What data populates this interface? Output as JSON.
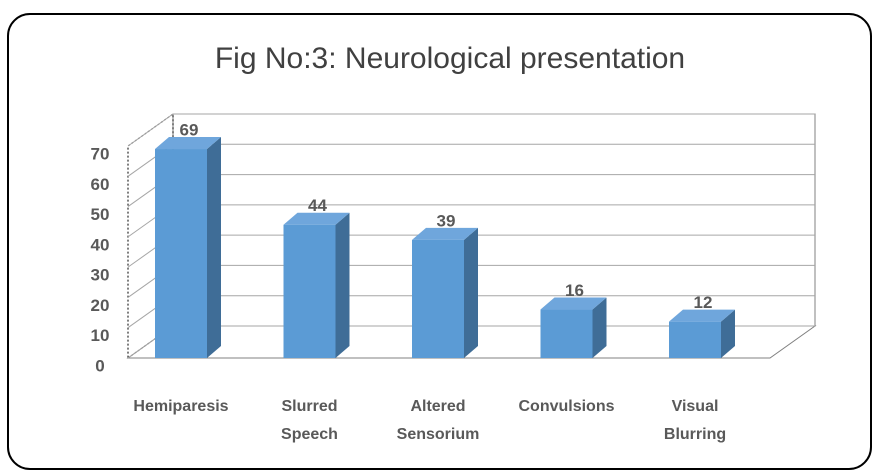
{
  "chart_data": {
    "type": "bar3d",
    "title": "Fig No:3: Neurological  presentation",
    "categories": [
      "Hemiparesis",
      "Slurred\nSpeech",
      "Altered\nSensorium",
      "Convulsions",
      "Visual\nBlurring"
    ],
    "values": [
      69,
      44,
      39,
      16,
      12
    ],
    "color": "#5b9bd5",
    "ylim": [
      0,
      70
    ],
    "yticks": [
      0,
      10,
      20,
      30,
      40,
      50,
      60,
      70
    ],
    "grid": true
  }
}
